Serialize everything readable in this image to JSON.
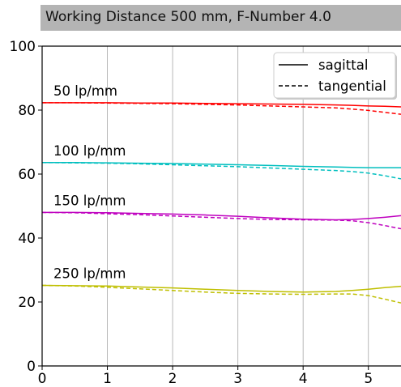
{
  "chart_data": {
    "type": "line",
    "title": "Working Distance 500 mm, F-Number 4.0",
    "xlabel": "",
    "ylabel": "",
    "xlim": [
      0,
      5.5
    ],
    "ylim": [
      0,
      100
    ],
    "xticks": [
      0,
      1,
      2,
      3,
      4,
      5
    ],
    "yticks": [
      0,
      20,
      40,
      60,
      80,
      100
    ],
    "grid": "vertical",
    "legend": {
      "placement": "top-right",
      "entries": [
        {
          "label": "sagittal",
          "style": "solid"
        },
        {
          "label": "tangential",
          "style": "dashed"
        }
      ]
    },
    "x": [
      0,
      0.5,
      1,
      1.5,
      2,
      2.5,
      3,
      3.5,
      4,
      4.5,
      4.75,
      5,
      5.25,
      5.5
    ],
    "groups": [
      {
        "label": "50 lp/mm",
        "color": "#ff0000",
        "sagittal": [
          82.3,
          82.3,
          82.3,
          82.2,
          82.2,
          82.1,
          82.0,
          81.9,
          81.8,
          81.6,
          81.5,
          81.3,
          81.2,
          81.0
        ],
        "tangential": [
          82.3,
          82.3,
          82.2,
          82.1,
          82.0,
          81.8,
          81.6,
          81.3,
          81.0,
          80.7,
          80.3,
          79.9,
          79.3,
          78.7
        ]
      },
      {
        "label": "100 lp/mm",
        "color": "#00bfbf",
        "sagittal": [
          63.6,
          63.6,
          63.5,
          63.4,
          63.3,
          63.1,
          62.9,
          62.7,
          62.4,
          62.2,
          62.1,
          62.0,
          62.0,
          62.0
        ],
        "tangential": [
          63.6,
          63.5,
          63.4,
          63.2,
          62.9,
          62.6,
          62.3,
          61.9,
          61.5,
          61.1,
          60.8,
          60.3,
          59.5,
          58.5
        ]
      },
      {
        "label": "150 lp/mm",
        "color": "#bf00bf",
        "sagittal": [
          48.0,
          48.0,
          47.9,
          47.7,
          47.5,
          47.2,
          46.8,
          46.3,
          45.9,
          45.7,
          45.8,
          46.1,
          46.5,
          47.0
        ],
        "tangential": [
          48.0,
          47.9,
          47.6,
          47.3,
          46.9,
          46.5,
          46.1,
          45.8,
          45.7,
          45.6,
          45.4,
          44.8,
          43.9,
          42.9
        ]
      },
      {
        "label": "250 lp/mm",
        "color": "#bfbf00",
        "sagittal": [
          25.2,
          25.1,
          25.0,
          24.7,
          24.4,
          24.0,
          23.6,
          23.3,
          23.1,
          23.3,
          23.6,
          24.0,
          24.5,
          24.9
        ],
        "tangential": [
          25.2,
          25.0,
          24.6,
          24.1,
          23.6,
          23.1,
          22.7,
          22.5,
          22.4,
          22.5,
          22.5,
          22.0,
          20.9,
          19.7
        ]
      }
    ]
  }
}
